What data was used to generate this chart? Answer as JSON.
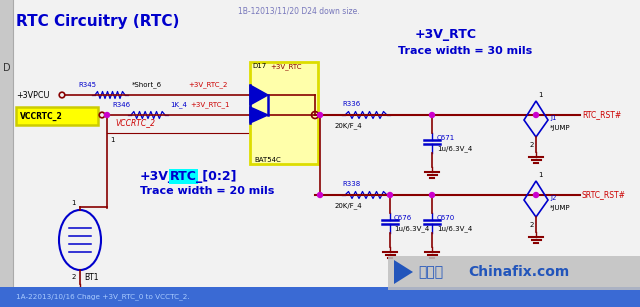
{
  "title": "RTC Circuitry (RTC)",
  "subtitle": "1B-12013/11/20 D24 down size.",
  "bottom_note": "1A-22013/10/16 Chage +3V_RTC_0 to VCCTC_2.",
  "bg_color": "#f2f2f2",
  "border_color": "#cccccc",
  "DARK_RED": "#880000",
  "BLUE": "#0000cc",
  "RED": "#cc0000",
  "MAGENTA": "#cc00cc",
  "BLACK": "#000000",
  "CYAN_BG": "#00ffff",
  "YELLOW": "#ffff00",
  "BLUE_BAR": "#3a6ad4",
  "WATERMARK_BG": "#c0c0c0",
  "WATERMARK_BLUE": "#2255bb"
}
